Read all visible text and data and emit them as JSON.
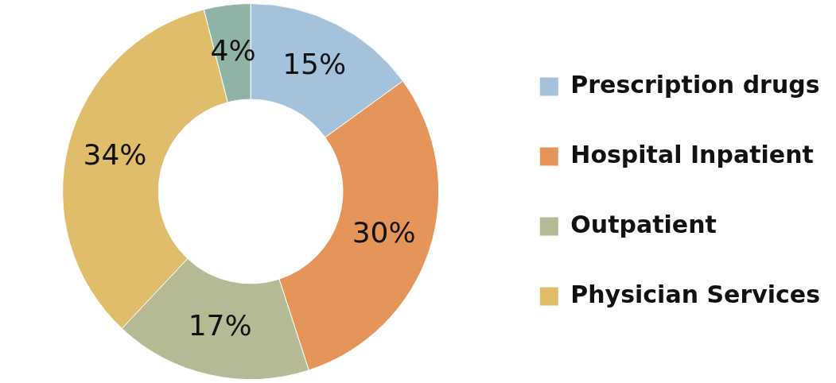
{
  "chart_data": {
    "type": "donut",
    "categories": [
      "Prescription drugs",
      "Hospital Inpatient",
      "Outpatient",
      "Physician Services",
      null
    ],
    "values": [
      15,
      30,
      17,
      34,
      4
    ],
    "colors": [
      "#a5c2dc",
      "#e6955a",
      "#b5b994",
      "#e0bd6a",
      "#8fb3a4"
    ],
    "value_labels": [
      "15%",
      "30%",
      "17%",
      "34%",
      "4%"
    ],
    "legend": "right"
  }
}
